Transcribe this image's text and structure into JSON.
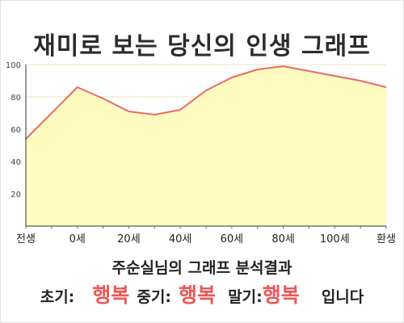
{
  "title": "재미로 보는 당신의 인생 그래프",
  "subtitle": "주순실님의 그래프 분석결과",
  "result": {
    "early_label": "초기:",
    "early_value": "행복",
    "mid_label": "중기:",
    "mid_value": "행복",
    "late_label": "말기:",
    "late_value": "행복",
    "suffix": "입니다"
  },
  "colors": {
    "line": "#e86a66",
    "fill": "#fffbc0",
    "accent": "#ef5656",
    "grid": "#e8e4b8"
  },
  "chart_data": {
    "type": "area",
    "x": [
      "전생",
      "",
      "0세",
      "",
      "20세",
      "",
      "40세",
      "",
      "60세",
      "",
      "80세",
      "",
      "100세",
      "",
      "환생"
    ],
    "y": [
      54,
      70,
      86,
      79,
      71,
      69,
      72,
      84,
      92,
      97,
      99,
      96,
      93,
      90,
      86
    ],
    "x_tick_labels": [
      "전생",
      "0세",
      "20세",
      "40세",
      "60세",
      "80세",
      "100세",
      "환생"
    ],
    "y_tick_labels": [
      "20",
      "40",
      "60",
      "80",
      "100"
    ],
    "ylim": [
      0,
      100
    ],
    "grid": true
  }
}
